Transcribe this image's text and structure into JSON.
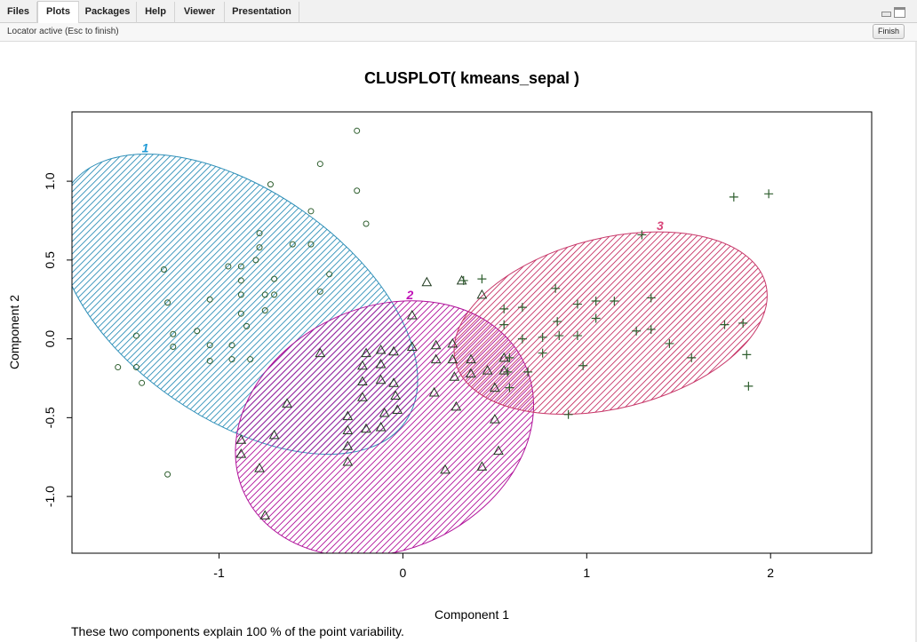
{
  "tabs": [
    {
      "label": "Files",
      "active": false
    },
    {
      "label": "Plots",
      "active": true
    },
    {
      "label": "Packages",
      "active": false
    },
    {
      "label": "Help",
      "active": false
    },
    {
      "label": "Viewer",
      "active": false
    },
    {
      "label": "Presentation",
      "active": false
    }
  ],
  "status": {
    "text": "Locator active (Esc to finish)",
    "finish_label": "Finish"
  },
  "plot": {
    "caption": "These two components explain 100 % of the point variability."
  },
  "colors": {
    "cluster1": "#2e8fb8",
    "cluster2": "#b0109a",
    "cluster3": "#c8386a",
    "cluster1_label": "#1f9ad6",
    "cluster2_label": "#c014b8",
    "cluster3_label": "#d9467a",
    "points": "#2f5f2f"
  },
  "chart_data": {
    "type": "scatter",
    "title": "CLUSPLOT( kmeans_sepal )",
    "xlabel": "Component 1",
    "ylabel": "Component 2",
    "xlim": [
      -1.8,
      2.55
    ],
    "ylim": [
      -1.36,
      1.44
    ],
    "xticks": [
      "-1",
      "0",
      "1",
      "2"
    ],
    "xtick_values": [
      -1,
      0,
      1,
      2
    ],
    "yticks": [
      "-1.0",
      "-0.5",
      "0.0",
      "0.5",
      "1.0"
    ],
    "ytick_values": [
      -1.0,
      -0.5,
      0.0,
      0.5,
      1.0
    ],
    "clusters": [
      {
        "label": "1",
        "shape": "circle",
        "ellipse": {
          "cx": -0.9,
          "cy": 0.22,
          "rx": 0.62,
          "ry": 1.3,
          "angle_deg": -55
        },
        "points": [
          [
            -0.25,
            1.32
          ],
          [
            -0.45,
            1.11
          ],
          [
            -0.25,
            0.94
          ],
          [
            -0.72,
            0.98
          ],
          [
            -0.5,
            0.81
          ],
          [
            -0.2,
            0.73
          ],
          [
            -0.78,
            0.67
          ],
          [
            -0.78,
            0.58
          ],
          [
            -0.6,
            0.6
          ],
          [
            -0.5,
            0.6
          ],
          [
            -0.8,
            0.5
          ],
          [
            -0.95,
            0.46
          ],
          [
            -0.88,
            0.46
          ],
          [
            -1.3,
            0.44
          ],
          [
            -0.4,
            0.41
          ],
          [
            -0.88,
            0.37
          ],
          [
            -0.7,
            0.38
          ],
          [
            -0.45,
            0.3
          ],
          [
            -0.75,
            0.28
          ],
          [
            -0.88,
            0.28
          ],
          [
            -0.7,
            0.28
          ],
          [
            -1.05,
            0.25
          ],
          [
            -1.28,
            0.23
          ],
          [
            -0.75,
            0.18
          ],
          [
            -0.88,
            0.16
          ],
          [
            -1.45,
            0.02
          ],
          [
            -1.25,
            0.03
          ],
          [
            -1.12,
            0.05
          ],
          [
            -0.85,
            0.08
          ],
          [
            -1.25,
            -0.05
          ],
          [
            -1.05,
            -0.04
          ],
          [
            -0.93,
            -0.04
          ],
          [
            -1.45,
            -0.18
          ],
          [
            -1.55,
            -0.18
          ],
          [
            -1.05,
            -0.14
          ],
          [
            -0.93,
            -0.13
          ],
          [
            -0.83,
            -0.13
          ],
          [
            -1.42,
            -0.28
          ],
          [
            -1.28,
            -0.86
          ]
        ]
      },
      {
        "label": "2",
        "shape": "triangle",
        "ellipse": {
          "cx": -0.1,
          "cy": -0.57,
          "rx": 0.84,
          "ry": 0.77,
          "angle_deg": -25
        },
        "points": [
          [
            0.13,
            0.36
          ],
          [
            0.32,
            0.37
          ],
          [
            0.43,
            0.28
          ],
          [
            0.05,
            0.15
          ],
          [
            -0.12,
            -0.07
          ],
          [
            -0.05,
            -0.08
          ],
          [
            0.05,
            -0.05
          ],
          [
            0.18,
            -0.04
          ],
          [
            0.27,
            -0.03
          ],
          [
            -0.2,
            -0.09
          ],
          [
            -0.45,
            -0.09
          ],
          [
            -0.12,
            -0.16
          ],
          [
            -0.22,
            -0.17
          ],
          [
            0.18,
            -0.13
          ],
          [
            0.27,
            -0.13
          ],
          [
            0.37,
            -0.13
          ],
          [
            0.55,
            -0.12
          ],
          [
            0.28,
            -0.24
          ],
          [
            0.37,
            -0.22
          ],
          [
            0.46,
            -0.2
          ],
          [
            0.55,
            -0.2
          ],
          [
            -0.05,
            -0.28
          ],
          [
            -0.12,
            -0.26
          ],
          [
            -0.22,
            -0.27
          ],
          [
            0.17,
            -0.34
          ],
          [
            0.5,
            -0.31
          ],
          [
            -0.04,
            -0.36
          ],
          [
            -0.22,
            -0.37
          ],
          [
            -0.63,
            -0.41
          ],
          [
            0.29,
            -0.43
          ],
          [
            -0.3,
            -0.49
          ],
          [
            -0.1,
            -0.47
          ],
          [
            -0.03,
            -0.45
          ],
          [
            -0.3,
            -0.58
          ],
          [
            -0.12,
            -0.56
          ],
          [
            -0.2,
            -0.57
          ],
          [
            -0.7,
            -0.61
          ],
          [
            -0.3,
            -0.68
          ],
          [
            -0.88,
            -0.64
          ],
          [
            -0.88,
            -0.73
          ],
          [
            -0.3,
            -0.78
          ],
          [
            0.5,
            -0.51
          ],
          [
            0.52,
            -0.71
          ],
          [
            0.43,
            -0.81
          ],
          [
            0.23,
            -0.83
          ],
          [
            -0.78,
            -0.82
          ],
          [
            -0.75,
            -1.12
          ]
        ]
      },
      {
        "label": "3",
        "shape": "plus",
        "ellipse": {
          "cx": 1.13,
          "cy": 0.1,
          "rx": 0.87,
          "ry": 0.54,
          "angle_deg": -14
        },
        "points": [
          [
            1.8,
            0.9
          ],
          [
            1.99,
            0.92
          ],
          [
            1.3,
            0.66
          ],
          [
            0.83,
            0.32
          ],
          [
            0.43,
            0.38
          ],
          [
            0.33,
            0.37
          ],
          [
            1.35,
            0.26
          ],
          [
            1.05,
            0.24
          ],
          [
            1.15,
            0.24
          ],
          [
            0.95,
            0.22
          ],
          [
            0.65,
            0.2
          ],
          [
            0.55,
            0.19
          ],
          [
            0.84,
            0.11
          ],
          [
            1.05,
            0.13
          ],
          [
            0.55,
            0.09
          ],
          [
            1.75,
            0.09
          ],
          [
            1.85,
            0.1
          ],
          [
            1.27,
            0.05
          ],
          [
            1.35,
            0.06
          ],
          [
            0.65,
            0.0
          ],
          [
            0.76,
            0.01
          ],
          [
            0.85,
            0.02
          ],
          [
            0.95,
            0.02
          ],
          [
            1.45,
            -0.03
          ],
          [
            0.76,
            -0.09
          ],
          [
            0.58,
            -0.12
          ],
          [
            1.57,
            -0.12
          ],
          [
            1.87,
            -0.1
          ],
          [
            0.98,
            -0.17
          ],
          [
            0.57,
            -0.21
          ],
          [
            0.68,
            -0.21
          ],
          [
            1.88,
            -0.3
          ],
          [
            0.58,
            -0.31
          ],
          [
            0.9,
            -0.48
          ]
        ]
      }
    ]
  }
}
